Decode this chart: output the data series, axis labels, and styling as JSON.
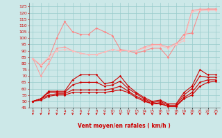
{
  "title": "Vent moyen/en rafales ( km/h )",
  "x": [
    0,
    1,
    2,
    3,
    4,
    5,
    6,
    7,
    8,
    9,
    10,
    11,
    12,
    13,
    14,
    15,
    16,
    17,
    18,
    19,
    20,
    21,
    22,
    23
  ],
  "ylim": [
    45,
    128
  ],
  "yticks": [
    45,
    50,
    55,
    60,
    65,
    70,
    75,
    80,
    85,
    90,
    95,
    100,
    105,
    110,
    115,
    120,
    125
  ],
  "bg_color": "#cce8e8",
  "grid_color": "#99cccc",
  "line_rafale1": [
    84,
    70,
    80,
    92,
    93,
    90,
    88,
    87,
    87,
    89,
    91,
    90,
    90,
    90,
    93,
    95,
    95,
    93,
    96,
    100,
    122,
    123,
    123,
    123
  ],
  "line_rafale2": [
    84,
    79,
    85,
    90,
    91,
    90,
    88,
    87,
    87,
    89,
    91,
    90,
    90,
    90,
    92,
    94,
    94,
    92,
    95,
    98,
    121,
    122,
    122,
    122
  ],
  "line_rafale3": [
    84,
    78,
    84,
    100,
    113,
    105,
    103,
    103,
    108,
    105,
    102,
    91,
    90,
    88,
    90,
    92,
    92,
    85,
    95,
    103,
    104,
    122,
    123,
    123
  ],
  "line_moy1": [
    50,
    52,
    58,
    58,
    58,
    67,
    71,
    71,
    71,
    64,
    65,
    70,
    62,
    57,
    53,
    50,
    51,
    48,
    48,
    57,
    62,
    75,
    71,
    71
  ],
  "line_moy2": [
    50,
    52,
    57,
    57,
    57,
    63,
    65,
    65,
    65,
    62,
    63,
    66,
    60,
    56,
    52,
    49,
    50,
    47,
    47,
    55,
    60,
    70,
    69,
    69
  ],
  "line_moy3": [
    50,
    52,
    55,
    56,
    56,
    59,
    59,
    59,
    59,
    59,
    60,
    62,
    58,
    54,
    51,
    48,
    49,
    46,
    46,
    53,
    57,
    65,
    67,
    67
  ],
  "line_moy4": [
    50,
    51,
    54,
    55,
    55,
    57,
    57,
    57,
    57,
    57,
    58,
    59,
    57,
    53,
    50,
    48,
    48,
    46,
    46,
    52,
    55,
    62,
    65,
    66
  ],
  "col_rafale1": "#ff9999",
  "col_rafale2": "#ffbbbb",
  "col_rafale3": "#ff8080",
  "col_moy1": "#cc0000",
  "col_moy2": "#cc0000",
  "col_moy3": "#cc0000",
  "col_moy4": "#cc0000",
  "arrow_color": "#cc0000",
  "tick_color": "#cc0000",
  "label_color": "#cc0000"
}
